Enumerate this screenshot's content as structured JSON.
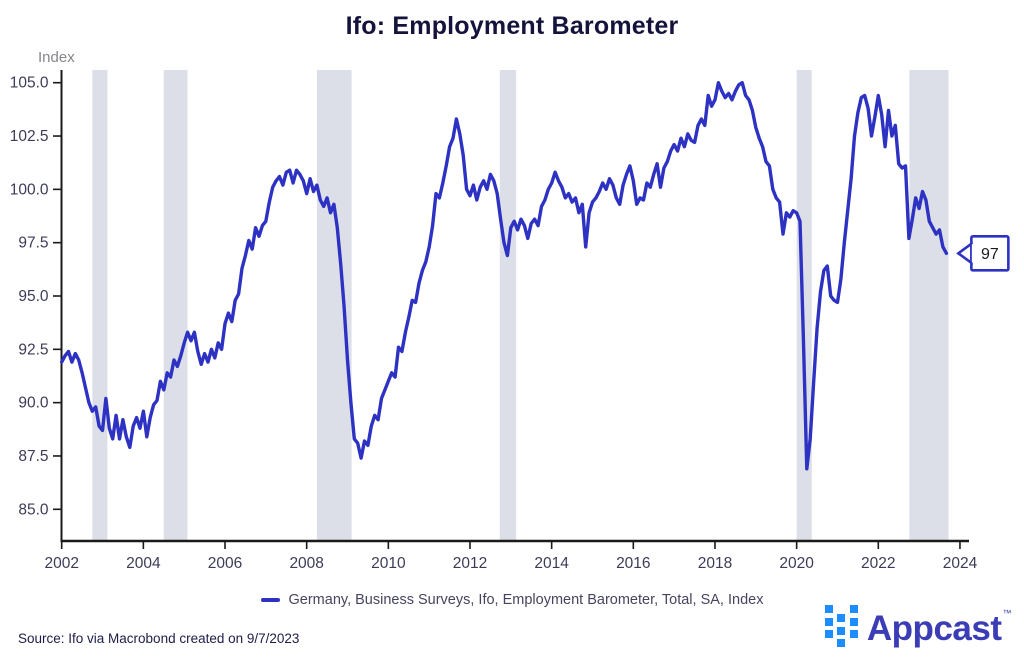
{
  "header": {
    "title": "Ifo: Employment Barometer"
  },
  "legend": {
    "label": "Germany, Business Surveys, Ifo, Employment Barometer, Total, SA, Index"
  },
  "footer": {
    "source": "Source: Ifo via Macrobond created on 9/7/2023",
    "brand": {
      "name": "Appcast",
      "trademark": "™"
    }
  },
  "colors": {
    "line": "#2e32c2",
    "recession_band": "#dcdfe8",
    "axis": "#1a1a1a",
    "tick_label": "#3c3c58",
    "axis_unit_label": "#85858d",
    "callout_border": "#2e32c2",
    "callout_text": "#1c1c1c",
    "logo_square": "#1b8dff",
    "logo_text": "#3a3db6"
  },
  "chart_data": {
    "type": "line",
    "title": "Ifo: Employment Barometer",
    "y_axis_label": "Index",
    "xlabel": "",
    "ylabel": "Index",
    "ylim": [
      85.0,
      105.0
    ],
    "xlim": [
      2002,
      2024.2
    ],
    "grid": false,
    "legend_position": "bottom",
    "yticks": [
      85.0,
      87.5,
      90.0,
      92.5,
      95.0,
      97.5,
      100.0,
      102.5,
      105.0
    ],
    "ytick_labels": [
      "85.0",
      "87.5",
      "90.0",
      "92.5",
      "95.0",
      "97.5",
      "100.0",
      "102.5",
      "105.0"
    ],
    "xticks": [
      2002,
      2004,
      2006,
      2008,
      2010,
      2012,
      2014,
      2016,
      2018,
      2020,
      2022,
      2024
    ],
    "xtick_labels": [
      "2002",
      "2004",
      "2006",
      "2008",
      "2010",
      "2012",
      "2014",
      "2016",
      "2018",
      "2020",
      "2022",
      "2024"
    ],
    "recession_bands": [
      [
        2002.75,
        2003.12
      ],
      [
        2004.5,
        2005.08
      ],
      [
        2008.25,
        2009.1
      ],
      [
        2012.73,
        2013.13
      ],
      [
        2020.0,
        2020.37
      ],
      [
        2022.76,
        2023.72
      ]
    ],
    "end_label": "97",
    "series": [
      {
        "name": "Germany, Business Surveys, Ifo, Employment Barometer, Total, SA, Index",
        "start_year": 2002,
        "frequency": "monthly",
        "values": [
          91.9,
          92.2,
          92.4,
          91.9,
          92.3,
          92.0,
          91.4,
          90.7,
          90.0,
          89.6,
          89.8,
          88.9,
          88.7,
          90.2,
          88.8,
          88.3,
          89.4,
          88.3,
          89.2,
          88.4,
          87.9,
          88.9,
          89.3,
          88.8,
          89.6,
          88.4,
          89.3,
          89.9,
          90.1,
          91.0,
          90.6,
          91.4,
          91.2,
          92.0,
          91.7,
          92.2,
          92.8,
          93.3,
          92.9,
          93.3,
          92.4,
          91.8,
          92.3,
          91.9,
          92.5,
          92.1,
          92.8,
          92.5,
          93.7,
          94.2,
          93.8,
          94.8,
          95.1,
          96.3,
          96.9,
          97.6,
          97.2,
          98.2,
          97.8,
          98.3,
          98.5,
          99.4,
          100.1,
          100.4,
          100.6,
          100.2,
          100.8,
          100.9,
          100.3,
          100.9,
          100.7,
          100.4,
          99.8,
          100.5,
          99.9,
          100.2,
          99.5,
          99.2,
          99.6,
          98.9,
          99.3,
          98.2,
          96.5,
          94.5,
          92.0,
          90.0,
          88.3,
          88.1,
          87.4,
          88.2,
          88.0,
          88.9,
          89.4,
          89.2,
          90.2,
          90.6,
          91.0,
          91.4,
          91.2,
          92.6,
          92.4,
          93.3,
          94.0,
          94.8,
          94.7,
          95.6,
          96.2,
          96.6,
          97.3,
          98.3,
          99.8,
          99.6,
          100.3,
          101.1,
          102.0,
          102.4,
          103.3,
          102.6,
          101.6,
          100.0,
          99.7,
          100.2,
          99.5,
          100.1,
          100.4,
          100.0,
          100.7,
          100.4,
          99.8,
          98.6,
          97.5,
          96.9,
          98.2,
          98.5,
          98.1,
          98.6,
          98.3,
          97.7,
          98.4,
          98.6,
          98.3,
          99.2,
          99.5,
          100.0,
          100.3,
          100.8,
          100.4,
          100.1,
          99.6,
          99.8,
          99.4,
          99.6,
          98.9,
          99.3,
          97.3,
          98.9,
          99.4,
          99.6,
          99.9,
          100.3,
          100.0,
          100.5,
          100.2,
          99.6,
          99.3,
          100.2,
          100.7,
          101.1,
          100.4,
          99.3,
          99.6,
          99.5,
          100.3,
          100.1,
          100.7,
          101.2,
          100.1,
          101.0,
          101.3,
          101.8,
          102.1,
          101.8,
          102.4,
          102.0,
          102.6,
          102.3,
          102.2,
          103.0,
          103.3,
          103.0,
          104.4,
          103.9,
          104.2,
          105.0,
          104.6,
          104.3,
          104.5,
          104.2,
          104.6,
          104.9,
          105.0,
          104.4,
          104.2,
          103.7,
          102.9,
          102.4,
          102.0,
          101.3,
          101.1,
          100.0,
          99.6,
          99.4,
          97.9,
          98.9,
          98.7,
          99.0,
          98.9,
          98.5,
          93.0,
          86.9,
          88.3,
          91.0,
          93.5,
          95.2,
          96.2,
          96.4,
          95.0,
          94.8,
          94.7,
          95.8,
          97.5,
          99.0,
          100.5,
          102.5,
          103.6,
          104.3,
          104.4,
          103.8,
          102.5,
          103.4,
          104.4,
          103.5,
          102.0,
          103.7,
          102.5,
          103.0,
          101.2,
          101.0,
          101.1,
          97.7,
          98.6,
          99.6,
          99.1,
          99.9,
          99.5,
          98.5,
          98.2,
          97.9,
          98.1,
          97.3,
          97.0
        ]
      }
    ]
  }
}
